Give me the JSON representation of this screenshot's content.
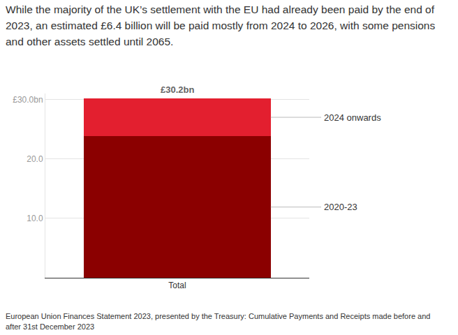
{
  "chart_data": {
    "type": "bar",
    "stacked": true,
    "title": "While the majority of the UK’s settlement with the EU had already been paid by the end of 2023, an estimated £6.4 billion will be paid mostly from 2024 to 2026, with some pensions and other assets settled until 2065.",
    "source": "European Union Finances Statement 2023, presented by the Treasury: Cumulative Payments and Receipts made before and after 31st December 2023",
    "categories": [
      "Total"
    ],
    "series": [
      {
        "name": "2020-23",
        "color": "#8b0000",
        "values": [
          23.8
        ]
      },
      {
        "name": "2024 onwards",
        "color": "#e31f2f",
        "values": [
          6.4
        ]
      }
    ],
    "ylim": [
      0,
      31
    ],
    "yticks": [
      {
        "value": 10,
        "label": "10.0"
      },
      {
        "value": 20,
        "label": "20.0"
      },
      {
        "value": 30,
        "label": "£30.0bn"
      }
    ],
    "grid": true,
    "annotations": [
      {
        "text": "£30.2bn",
        "x": "Total",
        "y": 30.2
      }
    ]
  }
}
